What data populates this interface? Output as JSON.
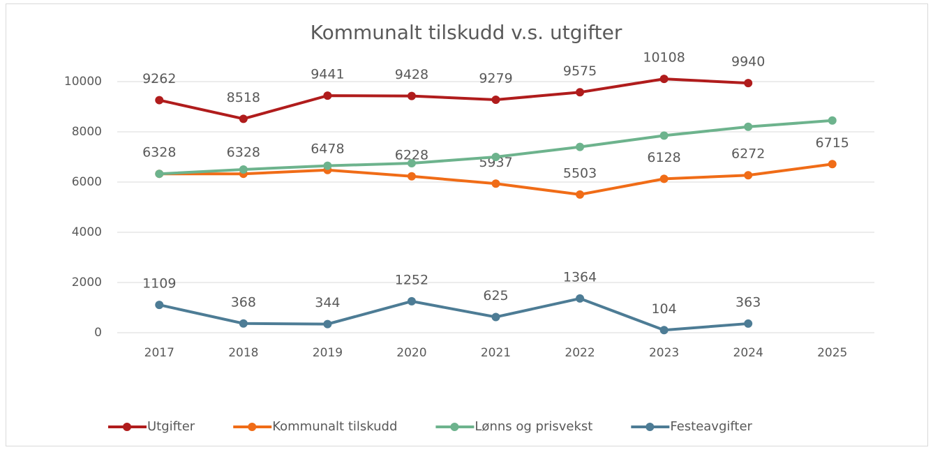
{
  "chart_data": {
    "type": "line",
    "title": "Kommunalt tilskudd v.s. utgifter",
    "categories": [
      "2017",
      "2018",
      "2019",
      "2020",
      "2021",
      "2022",
      "2023",
      "2024",
      "2025"
    ],
    "series": [
      {
        "name": "Utgifter",
        "color": "#b01c1c",
        "values": [
          9262,
          8518,
          9441,
          9428,
          9279,
          9575,
          10108,
          9940,
          null
        ],
        "data_labels": true
      },
      {
        "name": "Kommunalt tilskudd",
        "color": "#f06c17",
        "values": [
          6328,
          6328,
          6478,
          6228,
          5937,
          5503,
          6128,
          6272,
          6715
        ],
        "data_labels": true
      },
      {
        "name": "Lønns og prisvekst",
        "color": "#6db38d",
        "values": [
          6328,
          6500,
          6650,
          6750,
          7000,
          7400,
          7850,
          8200,
          8450
        ],
        "data_labels": false
      },
      {
        "name": "Festeavgifter",
        "color": "#4d7c95",
        "values": [
          1109,
          368,
          344,
          1252,
          625,
          1364,
          104,
          363,
          null
        ],
        "data_labels": true
      }
    ],
    "ylim": [
      0,
      10000
    ],
    "yticks": [
      0,
      2000,
      4000,
      6000,
      8000,
      10000
    ],
    "grid": true,
    "legend": "bottom"
  }
}
